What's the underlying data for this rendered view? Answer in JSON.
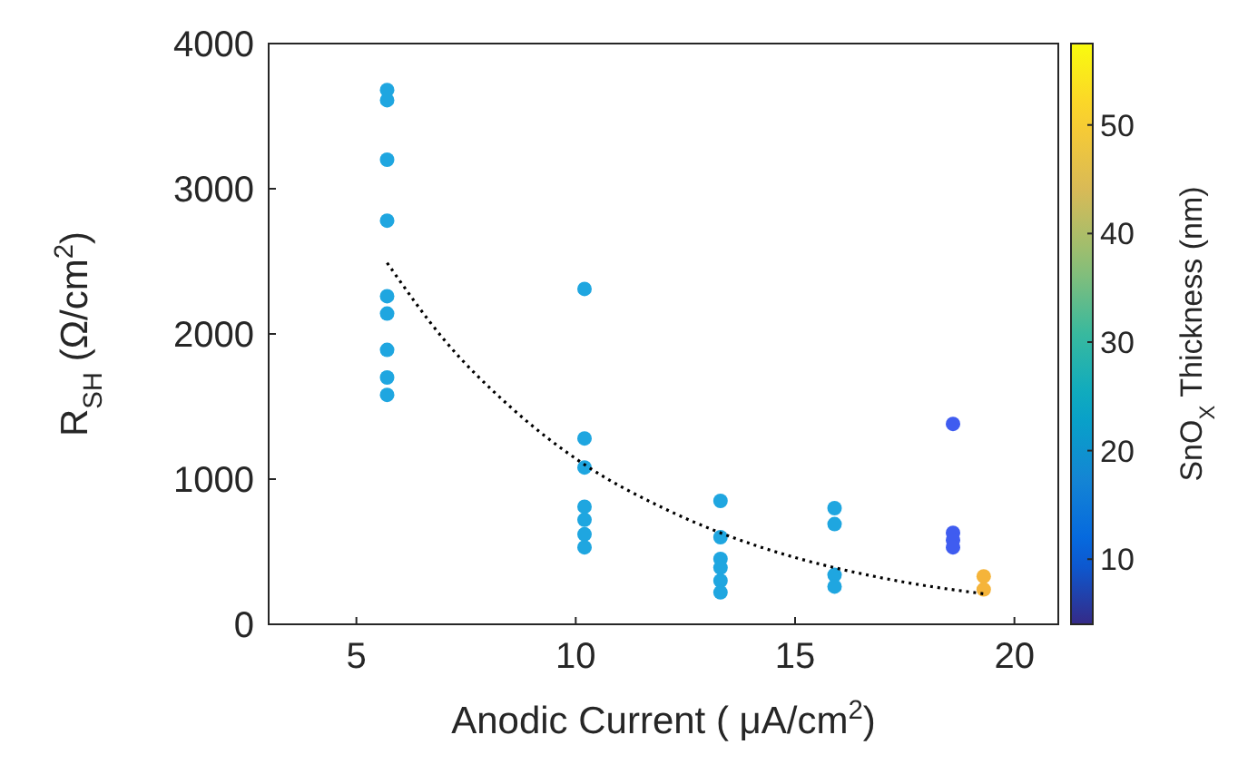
{
  "chart_data": {
    "type": "scatter",
    "xlabel": "Anodic Current ( μA/cm$^{2}$)",
    "ylabel": "R$_{SH}$ (Ω/cm$^{2}$)",
    "clabel": "SnO$_{X}$ Thickness (nm)",
    "xlim": [
      3,
      21
    ],
    "xticks": [
      5,
      10,
      15,
      20
    ],
    "ylim": [
      0,
      4000
    ],
    "yticks": [
      0,
      1000,
      2000,
      3000,
      4000
    ],
    "clim": [
      4,
      57.5
    ],
    "cticks": [
      10,
      20,
      30,
      40,
      50
    ],
    "grid": false,
    "marker": "circle",
    "series": [
      {
        "x": [
          5.7,
          5.7,
          5.7,
          5.7,
          5.7,
          5.7,
          5.7,
          5.7,
          5.7,
          10.2,
          10.2,
          10.2,
          10.2,
          10.2,
          10.2,
          10.2,
          13.3,
          13.3,
          13.3,
          13.3,
          13.3,
          13.3,
          15.9,
          15.9,
          15.9,
          15.9,
          18.6,
          18.6,
          18.6,
          18.6,
          19.3,
          19.3
        ],
        "values": [
          3680,
          3610,
          3200,
          2780,
          2260,
          2140,
          1890,
          1700,
          1580,
          2310,
          1280,
          1080,
          810,
          720,
          620,
          530,
          850,
          600,
          450,
          390,
          300,
          220,
          800,
          690,
          340,
          260,
          1380,
          630,
          580,
          530,
          330,
          240
        ],
        "colors": [
          "#1fa6e0",
          "#1fa6e0",
          "#1fa6e0",
          "#1fa6e0",
          "#1fa6e0",
          "#1fa6e0",
          "#1fa6e0",
          "#1fa6e0",
          "#1fa6e0",
          "#1fa6e0",
          "#1fa6e0",
          "#1fa6e0",
          "#1fa6e0",
          "#1fa6e0",
          "#1fa6e0",
          "#1fa6e0",
          "#1fa6e0",
          "#1fa6e0",
          "#1fa6e0",
          "#1fa6e0",
          "#1fa6e0",
          "#1fa6e0",
          "#1fa6e0",
          "#1fa6e0",
          "#1fa6e0",
          "#1fa6e0",
          "#3f5cf0",
          "#3f5cf0",
          "#3f5cf0",
          "#3f5cf0",
          "#f5b43a",
          "#f5b43a"
        ]
      },
      {
        "type": "line",
        "color": "#000000",
        "line_style": "dotted",
        "marker": "none",
        "x": [
          5.7,
          7,
          8.5,
          10.2,
          12,
          13.3,
          15,
          15.9,
          17.5,
          19.3
        ],
        "values": [
          2490,
          1960,
          1500,
          1100,
          800,
          630,
          460,
          390,
          290,
          210
        ]
      }
    ]
  }
}
